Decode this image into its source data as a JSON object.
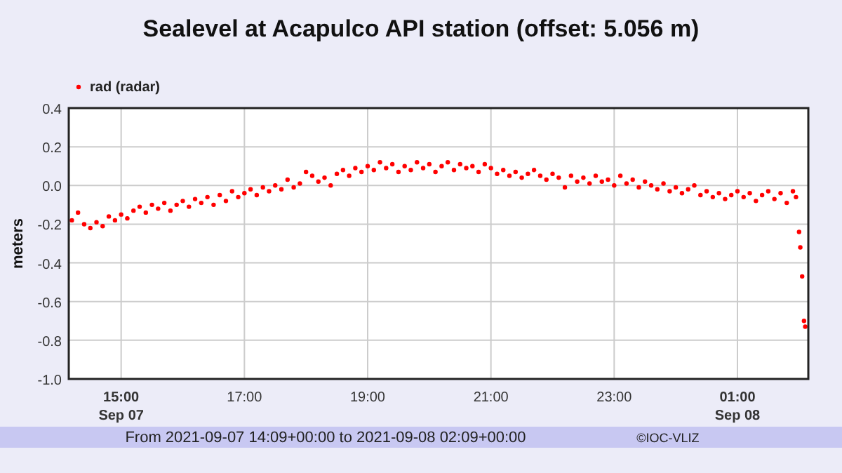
{
  "chart_data": {
    "type": "scatter",
    "title": "Sealevel at Acapulco API station (offset: 5.056 m)",
    "ylabel": "meters",
    "x": [
      14.2,
      14.3,
      14.4,
      14.5,
      14.6,
      14.7,
      14.8,
      14.9,
      15.0,
      15.1,
      15.2,
      15.3,
      15.4,
      15.5,
      15.6,
      15.7,
      15.8,
      15.9,
      16.0,
      16.1,
      16.2,
      16.3,
      16.4,
      16.5,
      16.6,
      16.7,
      16.8,
      16.9,
      17.0,
      17.1,
      17.2,
      17.3,
      17.4,
      17.5,
      17.6,
      17.7,
      17.8,
      17.9,
      18.0,
      18.1,
      18.2,
      18.3,
      18.4,
      18.5,
      18.6,
      18.7,
      18.8,
      18.9,
      19.0,
      19.1,
      19.2,
      19.3,
      19.4,
      19.5,
      19.6,
      19.7,
      19.8,
      19.9,
      20.0,
      20.1,
      20.2,
      20.3,
      20.4,
      20.5,
      20.6,
      20.7,
      20.8,
      20.9,
      21.0,
      21.1,
      21.2,
      21.3,
      21.4,
      21.5,
      21.6,
      21.7,
      21.8,
      21.9,
      22.0,
      22.1,
      22.2,
      22.3,
      22.4,
      22.5,
      22.6,
      22.7,
      22.8,
      22.9,
      23.0,
      23.1,
      23.2,
      23.3,
      23.4,
      23.5,
      23.6,
      23.7,
      23.8,
      23.9,
      24.0,
      24.1,
      24.2,
      24.3,
      24.4,
      24.5,
      24.6,
      24.7,
      24.8,
      24.9,
      25.0,
      25.1,
      25.2,
      25.3,
      25.4,
      25.5,
      25.6,
      25.7,
      25.8,
      25.9,
      25.95,
      26.0,
      26.02,
      26.05,
      26.08,
      26.1
    ],
    "series": [
      {
        "name": "rad (radar)",
        "color": "#ff0000",
        "values": [
          -0.18,
          -0.14,
          -0.2,
          -0.22,
          -0.19,
          -0.21,
          -0.16,
          -0.18,
          -0.15,
          -0.17,
          -0.13,
          -0.11,
          -0.14,
          -0.1,
          -0.12,
          -0.09,
          -0.13,
          -0.1,
          -0.08,
          -0.11,
          -0.07,
          -0.09,
          -0.06,
          -0.1,
          -0.05,
          -0.08,
          -0.03,
          -0.06,
          -0.04,
          -0.02,
          -0.05,
          -0.01,
          -0.03,
          0.0,
          -0.02,
          0.03,
          -0.01,
          0.01,
          0.07,
          0.05,
          0.02,
          0.04,
          0.0,
          0.06,
          0.08,
          0.05,
          0.09,
          0.07,
          0.1,
          0.08,
          0.12,
          0.09,
          0.11,
          0.07,
          0.1,
          0.08,
          0.12,
          0.09,
          0.11,
          0.07,
          0.1,
          0.12,
          0.08,
          0.11,
          0.09,
          0.1,
          0.07,
          0.11,
          0.09,
          0.06,
          0.08,
          0.05,
          0.07,
          0.04,
          0.06,
          0.08,
          0.05,
          0.03,
          0.06,
          0.04,
          -0.01,
          0.05,
          0.02,
          0.04,
          0.01,
          0.05,
          0.02,
          0.03,
          0.0,
          0.05,
          0.01,
          0.03,
          -0.01,
          0.02,
          0.0,
          -0.02,
          0.01,
          -0.03,
          -0.01,
          -0.04,
          -0.02,
          0.0,
          -0.05,
          -0.03,
          -0.06,
          -0.04,
          -0.07,
          -0.05,
          -0.03,
          -0.06,
          -0.04,
          -0.08,
          -0.05,
          -0.03,
          -0.07,
          -0.04,
          -0.09,
          -0.03,
          -0.06,
          -0.24,
          -0.32,
          -0.47,
          -0.7,
          -0.73
        ]
      }
    ],
    "xlim": [
      14.15,
      26.15
    ],
    "xticks": [
      {
        "value": 15,
        "label": "15:00\nSep 07"
      },
      {
        "value": 17,
        "label": "17:00"
      },
      {
        "value": 19,
        "label": "19:00"
      },
      {
        "value": 21,
        "label": "21:00"
      },
      {
        "value": 23,
        "label": "23:00"
      },
      {
        "value": 25,
        "label": "01:00\nSep 08"
      }
    ],
    "ylim": [
      -1.0,
      0.4
    ],
    "yticks": [
      {
        "value": -1.0,
        "label": "-1.0"
      },
      {
        "value": -0.8,
        "label": "-0.8"
      },
      {
        "value": -0.6,
        "label": "-0.6"
      },
      {
        "value": -0.4,
        "label": "-0.4"
      },
      {
        "value": -0.2,
        "label": "-0.2"
      },
      {
        "value": 0,
        "label": "0.0"
      },
      {
        "value": 0.2,
        "label": "0.2"
      },
      {
        "value": 0.4,
        "label": "0.4"
      }
    ],
    "grid": true,
    "legend": "top left",
    "marker": "circle",
    "annotations": [
      "From 2021-09-07 14:09+00:00 to 2021-09-08 02:09+00:00",
      "©IOC-VLIZ"
    ]
  }
}
